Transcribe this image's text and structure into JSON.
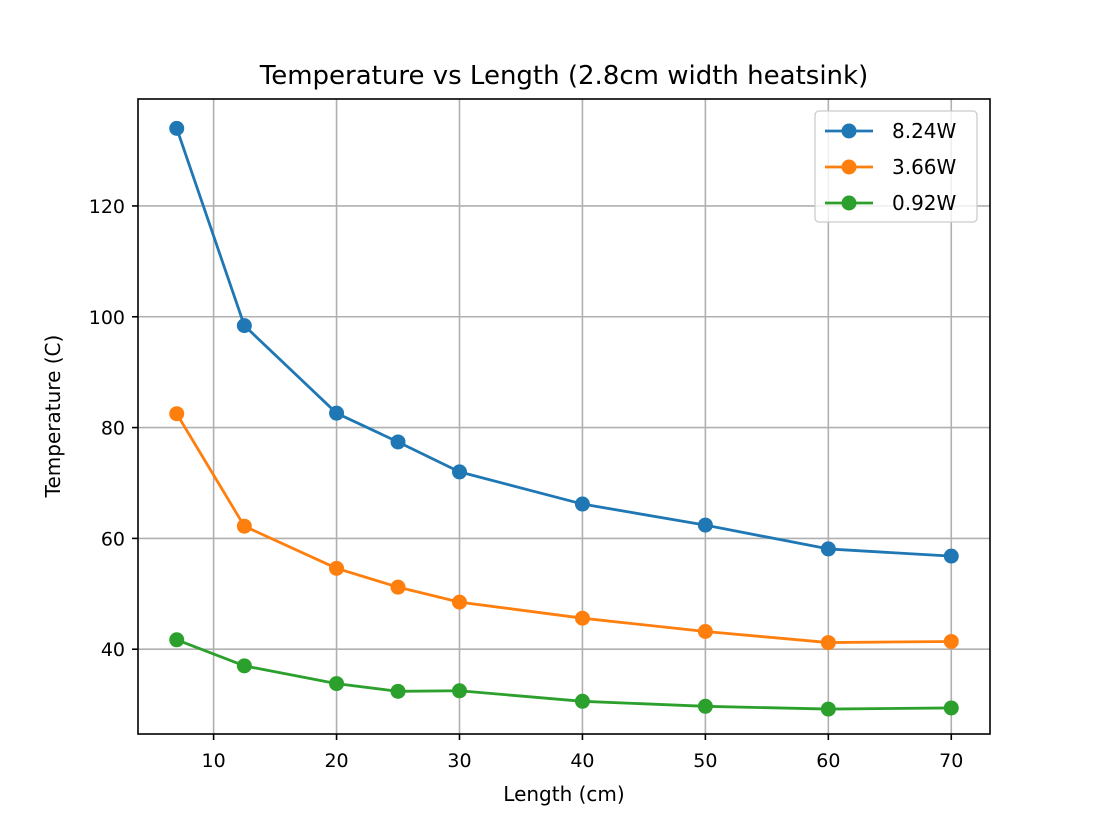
{
  "chart_data": {
    "type": "line",
    "title": "Temperature vs Length (2.8cm width heatsink)",
    "xlabel": "Length (cm)",
    "ylabel": "Temperature (C)",
    "xlim": [
      3.85,
      73.15
    ],
    "ylim": [
      24.7,
      139.3
    ],
    "xticks": [
      10,
      20,
      30,
      40,
      50,
      60,
      70
    ],
    "yticks": [
      40,
      60,
      80,
      100,
      120
    ],
    "grid": true,
    "legend_position": "top-right",
    "x": [
      7,
      12.5,
      20,
      25,
      30,
      40,
      50,
      60,
      70
    ],
    "series": [
      {
        "name": "8.24W",
        "color": "#1f77b4",
        "values": [
          134,
          98.4,
          82.6,
          77.4,
          72.0,
          66.2,
          62.4,
          58.1,
          56.8
        ]
      },
      {
        "name": "3.66W",
        "color": "#ff7f0e",
        "values": [
          82.5,
          62.2,
          54.6,
          51.2,
          48.5,
          45.6,
          43.2,
          41.2,
          41.4
        ]
      },
      {
        "name": "0.92W",
        "color": "#2ca02c",
        "values": [
          41.7,
          37.0,
          33.8,
          32.4,
          32.5,
          30.6,
          29.7,
          29.2,
          29.4
        ]
      }
    ]
  }
}
